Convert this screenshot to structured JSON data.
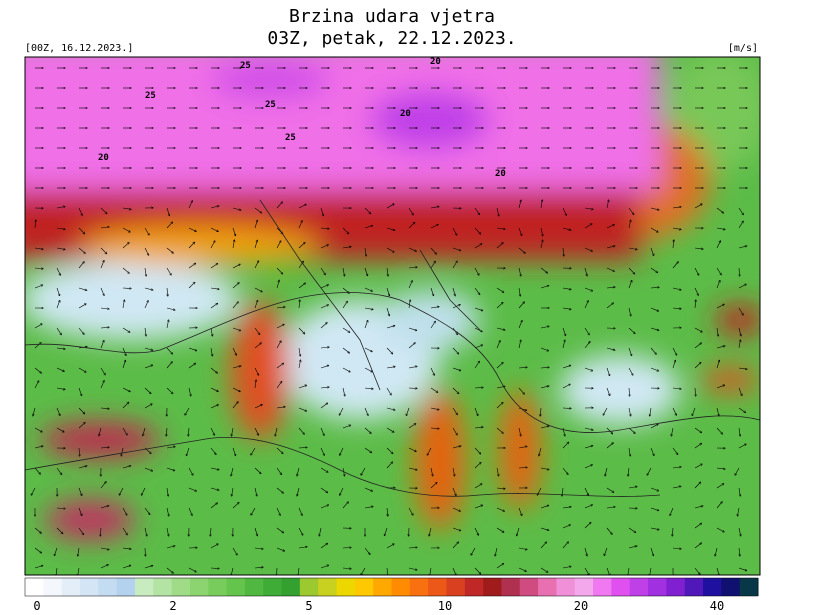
{
  "header": {
    "title": "Brzina udara vjetra",
    "subtitle": "03Z, petak, 22.12.2023.",
    "init": "[00Z, 16.12.2023.]",
    "units": "[m/s]"
  },
  "map": {
    "contour_labels": [
      "25",
      "25",
      "25",
      "25",
      "20",
      "20",
      "20",
      "20"
    ]
  },
  "colorbar": {
    "labels": [
      "0",
      "2",
      "5",
      "10",
      "20",
      "40"
    ],
    "colors": [
      "#ffffff",
      "#f4f8fc",
      "#e4eef8",
      "#d4e6f6",
      "#c4dcf2",
      "#b4d2ee",
      "#c8ecc0",
      "#b4e4a4",
      "#a0dc88",
      "#8cd470",
      "#78cc5c",
      "#64c44c",
      "#50b840",
      "#40ac38",
      "#34a030",
      "#9cc830",
      "#c8d020",
      "#ecd800",
      "#ffc800",
      "#ffa800",
      "#ff8c00",
      "#f87010",
      "#ec5818",
      "#d84020",
      "#c02828",
      "#a01c1c",
      "#b03050",
      "#d04c80",
      "#e870b0",
      "#f090d8",
      "#f4a8ec",
      "#f078f0",
      "#e050f0",
      "#c040e8",
      "#a030e0",
      "#8020d0",
      "#5018b8",
      "#2010a0",
      "#101070",
      "#083848"
    ]
  }
}
